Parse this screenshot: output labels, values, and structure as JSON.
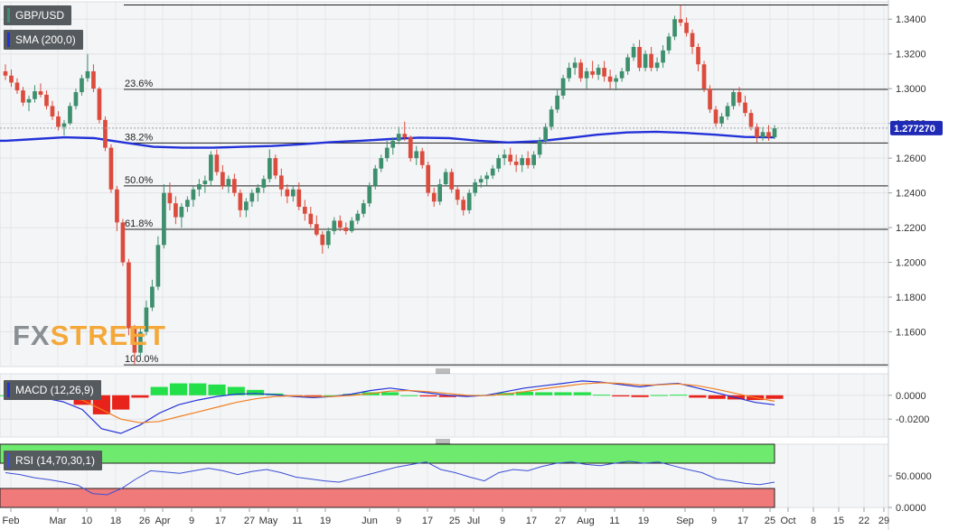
{
  "legend": {
    "symbol": "GBP/USD",
    "sma": "SMA (200,0)",
    "macd": "MACD (12,26,9)",
    "rsi": "RSI (14,70,30,1)"
  },
  "watermark": {
    "part1": "FX",
    "part2": "STREET"
  },
  "colors": {
    "up": "#3d8f6e",
    "down": "#dc4c3e",
    "sma": "#2332d8",
    "macd": "#2332d8",
    "signal": "#f07f22",
    "hist_pos": "#23e04a",
    "hist_neg": "#e8231b",
    "rsi_line": "#3a4fd6",
    "rsi_ob": "#6eea6e",
    "rsi_os": "#f07a7a",
    "last_price_bg": "#1e2ab5"
  },
  "chart_data": [
    {
      "type": "candlestick",
      "title": "GBP/USD",
      "y_axis_ticks": [
        "1.3400",
        "1.3200",
        "1.3000",
        "1.2800",
        "1.2600",
        "1.2400",
        "1.2200",
        "1.2000",
        "1.1800",
        "1.1600"
      ],
      "ylim": [
        1.14,
        1.35
      ],
      "x_tick_labels": [
        "Feb",
        "Mar",
        "10",
        "18",
        "26",
        "Apr",
        "9",
        "17",
        "27",
        "May",
        "11",
        "19",
        "Jun",
        "9",
        "17",
        "25",
        "Jul",
        "9",
        "17",
        "27",
        "Aug",
        "11",
        "19",
        "Sep",
        "9",
        "17",
        "25",
        "Oct",
        "8",
        "15",
        "22",
        "29"
      ],
      "last_price": "1.277270",
      "fibonacci": [
        {
          "label": "23.6%",
          "value": 1.2996
        },
        {
          "label": "38.2%",
          "value": 1.2687
        },
        {
          "label": "50.0%",
          "value": 1.244
        },
        {
          "label": "61.8%",
          "value": 1.219
        },
        {
          "label": "100.0%",
          "value": 1.141
        }
      ],
      "high_line": 1.3482,
      "candles": [
        [
          1.31,
          1.314,
          1.305,
          1.3075
        ],
        [
          1.3075,
          1.311,
          1.301,
          1.3035
        ],
        [
          1.3035,
          1.306,
          1.297,
          1.299
        ],
        [
          1.299,
          1.301,
          1.29,
          1.292
        ],
        [
          1.292,
          1.296,
          1.287,
          1.294
        ],
        [
          1.294,
          1.302,
          1.292,
          1.2985
        ],
        [
          1.2985,
          1.303,
          1.295,
          1.2965
        ],
        [
          1.2965,
          1.299,
          1.288,
          1.29
        ],
        [
          1.29,
          1.293,
          1.282,
          1.284
        ],
        [
          1.284,
          1.287,
          1.276,
          1.278
        ],
        [
          1.278,
          1.282,
          1.273,
          1.28
        ],
        [
          1.28,
          1.292,
          1.279,
          1.29
        ],
        [
          1.29,
          1.3,
          1.288,
          1.298
        ],
        [
          1.298,
          1.308,
          1.296,
          1.306
        ],
        [
          1.306,
          1.32,
          1.304,
          1.31
        ],
        [
          1.31,
          1.314,
          1.298,
          1.3
        ],
        [
          1.3,
          1.301,
          1.28,
          1.282
        ],
        [
          1.282,
          1.284,
          1.264,
          1.266
        ],
        [
          1.266,
          1.268,
          1.24,
          1.242
        ],
        [
          1.242,
          1.244,
          1.218,
          1.223
        ],
        [
          1.223,
          1.225,
          1.198,
          1.2
        ],
        [
          1.2,
          1.202,
          1.158,
          1.162
        ],
        [
          1.162,
          1.164,
          1.141,
          1.148
        ],
        [
          1.148,
          1.162,
          1.146,
          1.16
        ],
        [
          1.16,
          1.178,
          1.158,
          1.174
        ],
        [
          1.174,
          1.19,
          1.172,
          1.186
        ],
        [
          1.186,
          1.215,
          1.184,
          1.21
        ],
        [
          1.21,
          1.245,
          1.208,
          1.24
        ],
        [
          1.24,
          1.246,
          1.23,
          1.234
        ],
        [
          1.234,
          1.238,
          1.222,
          1.226
        ],
        [
          1.226,
          1.234,
          1.22,
          1.232
        ],
        [
          1.232,
          1.238,
          1.229,
          1.236
        ],
        [
          1.236,
          1.244,
          1.232,
          1.242
        ],
        [
          1.242,
          1.248,
          1.238,
          1.245
        ],
        [
          1.245,
          1.25,
          1.24,
          1.247
        ],
        [
          1.247,
          1.264,
          1.244,
          1.262
        ],
        [
          1.262,
          1.265,
          1.25,
          1.252
        ],
        [
          1.252,
          1.256,
          1.242,
          1.244
        ],
        [
          1.244,
          1.25,
          1.24,
          1.248
        ],
        [
          1.248,
          1.251,
          1.238,
          1.24
        ],
        [
          1.24,
          1.242,
          1.226,
          1.23
        ],
        [
          1.23,
          1.237,
          1.226,
          1.235
        ],
        [
          1.235,
          1.242,
          1.232,
          1.24
        ],
        [
          1.24,
          1.245,
          1.235,
          1.243
        ],
        [
          1.243,
          1.25,
          1.24,
          1.248
        ],
        [
          1.248,
          1.265,
          1.246,
          1.26
        ],
        [
          1.26,
          1.262,
          1.248,
          1.25
        ],
        [
          1.25,
          1.254,
          1.238,
          1.242
        ],
        [
          1.242,
          1.245,
          1.234,
          1.238
        ],
        [
          1.238,
          1.244,
          1.235,
          1.242
        ],
        [
          1.242,
          1.246,
          1.23,
          1.232
        ],
        [
          1.232,
          1.236,
          1.224,
          1.228
        ],
        [
          1.228,
          1.232,
          1.22,
          1.222
        ],
        [
          1.222,
          1.227,
          1.215,
          1.216
        ],
        [
          1.216,
          1.218,
          1.205,
          1.21
        ],
        [
          1.21,
          1.22,
          1.208,
          1.218
        ],
        [
          1.218,
          1.226,
          1.216,
          1.224
        ],
        [
          1.224,
          1.227,
          1.218,
          1.22
        ],
        [
          1.22,
          1.223,
          1.216,
          1.218
        ],
        [
          1.218,
          1.226,
          1.217,
          1.224
        ],
        [
          1.224,
          1.23,
          1.222,
          1.228
        ],
        [
          1.228,
          1.236,
          1.226,
          1.234
        ],
        [
          1.234,
          1.246,
          1.232,
          1.244
        ],
        [
          1.244,
          1.256,
          1.242,
          1.254
        ],
        [
          1.254,
          1.262,
          1.252,
          1.26
        ],
        [
          1.26,
          1.27,
          1.258,
          1.266
        ],
        [
          1.266,
          1.272,
          1.262,
          1.27
        ],
        [
          1.27,
          1.278,
          1.268,
          1.274
        ],
        [
          1.274,
          1.281,
          1.27,
          1.272
        ],
        [
          1.272,
          1.273,
          1.258,
          1.26
        ],
        [
          1.26,
          1.267,
          1.256,
          1.264
        ],
        [
          1.264,
          1.266,
          1.254,
          1.256
        ],
        [
          1.256,
          1.258,
          1.238,
          1.24
        ],
        [
          1.24,
          1.243,
          1.232,
          1.235
        ],
        [
          1.235,
          1.248,
          1.233,
          1.245
        ],
        [
          1.245,
          1.254,
          1.244,
          1.252
        ],
        [
          1.252,
          1.254,
          1.24,
          1.242
        ],
        [
          1.242,
          1.244,
          1.233,
          1.236
        ],
        [
          1.236,
          1.238,
          1.227,
          1.23
        ],
        [
          1.23,
          1.242,
          1.228,
          1.24
        ],
        [
          1.24,
          1.248,
          1.238,
          1.246
        ],
        [
          1.246,
          1.25,
          1.243,
          1.248
        ],
        [
          1.248,
          1.252,
          1.244,
          1.25
        ],
        [
          1.25,
          1.256,
          1.248,
          1.254
        ],
        [
          1.254,
          1.262,
          1.252,
          1.26
        ],
        [
          1.26,
          1.265,
          1.256,
          1.262
        ],
        [
          1.262,
          1.266,
          1.256,
          1.258
        ],
        [
          1.258,
          1.262,
          1.252,
          1.256
        ],
        [
          1.256,
          1.262,
          1.252,
          1.26
        ],
        [
          1.26,
          1.264,
          1.254,
          1.256
        ],
        [
          1.256,
          1.264,
          1.254,
          1.262
        ],
        [
          1.262,
          1.272,
          1.26,
          1.27
        ],
        [
          1.27,
          1.28,
          1.268,
          1.278
        ],
        [
          1.278,
          1.29,
          1.276,
          1.288
        ],
        [
          1.288,
          1.3,
          1.286,
          1.296
        ],
        [
          1.296,
          1.308,
          1.294,
          1.306
        ],
        [
          1.306,
          1.315,
          1.304,
          1.312
        ],
        [
          1.312,
          1.318,
          1.308,
          1.315
        ],
        [
          1.315,
          1.317,
          1.304,
          1.306
        ],
        [
          1.306,
          1.312,
          1.3,
          1.31
        ],
        [
          1.31,
          1.316,
          1.306,
          1.308
        ],
        [
          1.308,
          1.314,
          1.305,
          1.312
        ],
        [
          1.312,
          1.316,
          1.304,
          1.307
        ],
        [
          1.307,
          1.311,
          1.3,
          1.304
        ],
        [
          1.304,
          1.308,
          1.299,
          1.306
        ],
        [
          1.306,
          1.312,
          1.304,
          1.31
        ],
        [
          1.31,
          1.32,
          1.308,
          1.318
        ],
        [
          1.318,
          1.326,
          1.316,
          1.324
        ],
        [
          1.324,
          1.328,
          1.31,
          1.312
        ],
        [
          1.312,
          1.322,
          1.31,
          1.32
        ],
        [
          1.32,
          1.324,
          1.31,
          1.312
        ],
        [
          1.312,
          1.318,
          1.31,
          1.315
        ],
        [
          1.315,
          1.325,
          1.312,
          1.322
        ],
        [
          1.322,
          1.332,
          1.32,
          1.33
        ],
        [
          1.33,
          1.342,
          1.328,
          1.34
        ],
        [
          1.34,
          1.348,
          1.336,
          1.338
        ],
        [
          1.338,
          1.341,
          1.33,
          1.332
        ],
        [
          1.332,
          1.334,
          1.32,
          1.324
        ],
        [
          1.324,
          1.326,
          1.31,
          1.314
        ],
        [
          1.314,
          1.316,
          1.298,
          1.3
        ],
        [
          1.3,
          1.302,
          1.286,
          1.288
        ],
        [
          1.288,
          1.29,
          1.278,
          1.28
        ],
        [
          1.28,
          1.286,
          1.278,
          1.284
        ],
        [
          1.284,
          1.292,
          1.282,
          1.29
        ],
        [
          1.29,
          1.3,
          1.288,
          1.298
        ],
        [
          1.298,
          1.301,
          1.29,
          1.292
        ],
        [
          1.292,
          1.296,
          1.284,
          1.286
        ],
        [
          1.286,
          1.288,
          1.276,
          1.278
        ],
        [
          1.278,
          1.28,
          1.269,
          1.272
        ],
        [
          1.272,
          1.278,
          1.27,
          1.275
        ],
        [
          1.275,
          1.279,
          1.27,
          1.272
        ],
        [
          1.272,
          1.279,
          1.271,
          1.2773
        ]
      ],
      "sma_200": [
        1.27,
        1.271,
        1.272,
        1.2715,
        1.269,
        1.2665,
        1.266,
        1.266,
        1.2665,
        1.267,
        1.268,
        1.2692,
        1.27,
        1.271,
        1.2718,
        1.2715,
        1.27,
        1.269,
        1.2697,
        1.2715,
        1.2735,
        1.2748,
        1.2752,
        1.2745,
        1.2735,
        1.2722,
        1.272
      ]
    },
    {
      "type": "line",
      "title": "MACD (12,26,9)",
      "y_axis_ticks": [
        "0.0000",
        "-0.0200"
      ],
      "ylim": [
        -0.035,
        0.018
      ],
      "series": [
        {
          "name": "MACD",
          "values": [
            0.0005,
            -0.001,
            -0.0022,
            -0.0055,
            -0.012,
            -0.028,
            -0.032,
            -0.025,
            -0.015,
            -0.008,
            -0.004,
            -0.001,
            0.001,
            0.0015,
            0.0005,
            -0.001,
            -0.002,
            -0.001,
            0.001,
            0.004,
            0.006,
            0.004,
            0.002,
            0.0,
            -0.001,
            0.0,
            0.003,
            0.006,
            0.008,
            0.01,
            0.012,
            0.011,
            0.009,
            0.007,
            0.009,
            0.01,
            0.006,
            0.002,
            -0.002,
            -0.006,
            -0.008
          ]
        },
        {
          "name": "Signal",
          "values": [
            0.0005,
            0.0002,
            -0.0005,
            -0.0015,
            -0.004,
            -0.012,
            -0.02,
            -0.023,
            -0.022,
            -0.018,
            -0.014,
            -0.01,
            -0.006,
            -0.003,
            -0.001,
            -0.0005,
            -0.001,
            -0.001,
            -0.0002,
            0.0015,
            0.0035,
            0.004,
            0.003,
            0.0015,
            0.0,
            -0.0003,
            0.001,
            0.003,
            0.0055,
            0.0075,
            0.0095,
            0.0105,
            0.01,
            0.0085,
            0.0088,
            0.0095,
            0.008,
            0.005,
            0.0015,
            -0.002,
            -0.005
          ]
        }
      ]
    },
    {
      "type": "line",
      "title": "RSI (14,70,30,1)",
      "y_axis_ticks": [
        "50.0000",
        "0.0000"
      ],
      "ylim": [
        0,
        100
      ],
      "overbought": 70,
      "oversold": 30,
      "series": [
        {
          "name": "RSI",
          "values": [
            55,
            52,
            47,
            44,
            40,
            35,
            22,
            20,
            30,
            45,
            58,
            56,
            54,
            58,
            62,
            58,
            52,
            57,
            60,
            55,
            48,
            45,
            42,
            40,
            46,
            52,
            58,
            64,
            68,
            72,
            60,
            55,
            48,
            42,
            55,
            60,
            58,
            65,
            70,
            72,
            68,
            66,
            70,
            73,
            70,
            72,
            66,
            60,
            55,
            45,
            42,
            38,
            36,
            40
          ]
        }
      ]
    }
  ]
}
